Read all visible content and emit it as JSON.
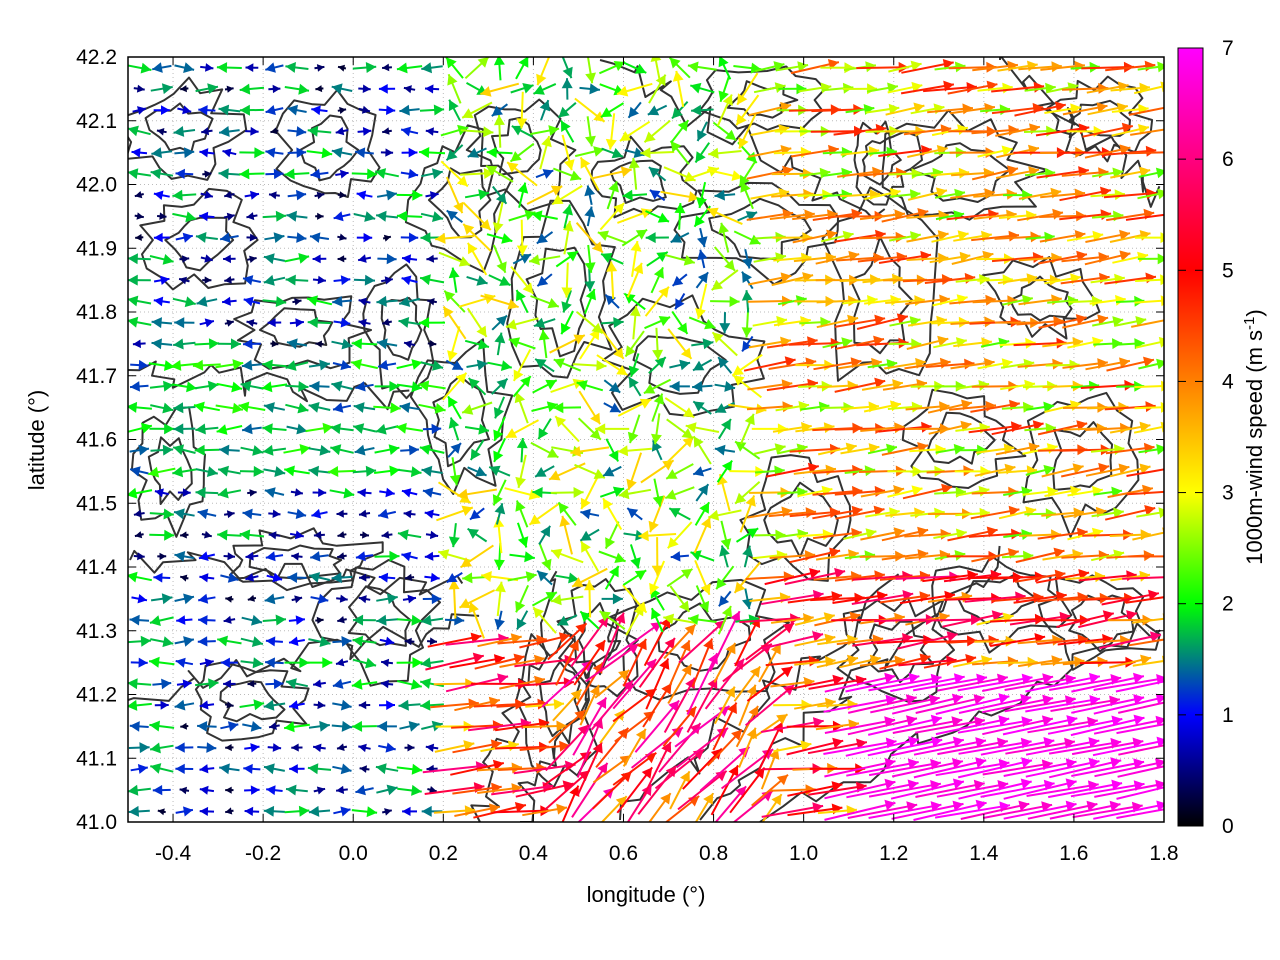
{
  "chart_data": {
    "type": "vector_field",
    "xlabel": "longitude (°)",
    "ylabel": "latitude (°)",
    "xlim": [
      -0.5,
      1.8
    ],
    "ylim": [
      41.0,
      42.2
    ],
    "xticks": [
      -0.4,
      -0.2,
      0.0,
      0.2,
      0.4,
      0.6,
      0.8,
      1.0,
      1.2,
      1.4,
      1.6,
      1.8
    ],
    "xtick_labels": [
      "-0.4",
      "-0.2",
      "0.0",
      "0.2",
      "0.4",
      "0.6",
      "0.8",
      "1.0",
      "1.2",
      "1.4",
      "1.6",
      "1.8"
    ],
    "yticks": [
      41.0,
      41.1,
      41.2,
      41.3,
      41.4,
      41.5,
      41.6,
      41.7,
      41.8,
      41.9,
      42.0,
      42.1,
      42.2
    ],
    "ytick_labels": [
      "41.0",
      "41.1",
      "41.2",
      "41.3",
      "41.4",
      "41.5",
      "41.6",
      "41.7",
      "41.8",
      "41.9",
      "42.0",
      "42.1",
      "42.2"
    ],
    "grid": true,
    "colorbar": {
      "label": "1000m-wind speed (m s",
      "label_sup": "-1",
      "label_end": ")",
      "range": [
        0,
        7
      ],
      "ticks": [
        0,
        1,
        2,
        3,
        4,
        5,
        6,
        7
      ],
      "tick_labels": [
        "0",
        "1",
        "2",
        "3",
        "4",
        "5",
        "6",
        "7"
      ],
      "colors": [
        "#000000",
        "#0000ff",
        "#00ff00",
        "#ffff00",
        "#ff8000",
        "#ff0000",
        "#ff00ff"
      ]
    },
    "contour_color": "#333333",
    "vector_regions": [
      {
        "region": "west",
        "lon": [
          -0.5,
          0.2
        ],
        "lat": [
          41.0,
          42.2
        ],
        "direction": "mostly easterly/westerly, variable",
        "speed_range": [
          0.0,
          2.0
        ]
      },
      {
        "region": "central",
        "lon": [
          0.2,
          0.9
        ],
        "lat": [
          41.2,
          42.2
        ],
        "direction": "variable",
        "speed_range": [
          1.5,
          3.5
        ]
      },
      {
        "region": "east",
        "lon": [
          0.9,
          1.8
        ],
        "lat": [
          41.3,
          42.2
        ],
        "direction": "from west-southwest",
        "speed_range": [
          2.5,
          5.0
        ]
      },
      {
        "region": "southeast",
        "lon": [
          1.1,
          1.8
        ],
        "lat": [
          41.0,
          41.25
        ],
        "direction": "from west-southwest",
        "speed_range": [
          6.0,
          7.0
        ]
      },
      {
        "region": "south-central",
        "lon": [
          0.5,
          0.9
        ],
        "lat": [
          41.0,
          41.3
        ],
        "direction": "from southwest",
        "speed_range": [
          4.5,
          6.5
        ]
      }
    ]
  }
}
